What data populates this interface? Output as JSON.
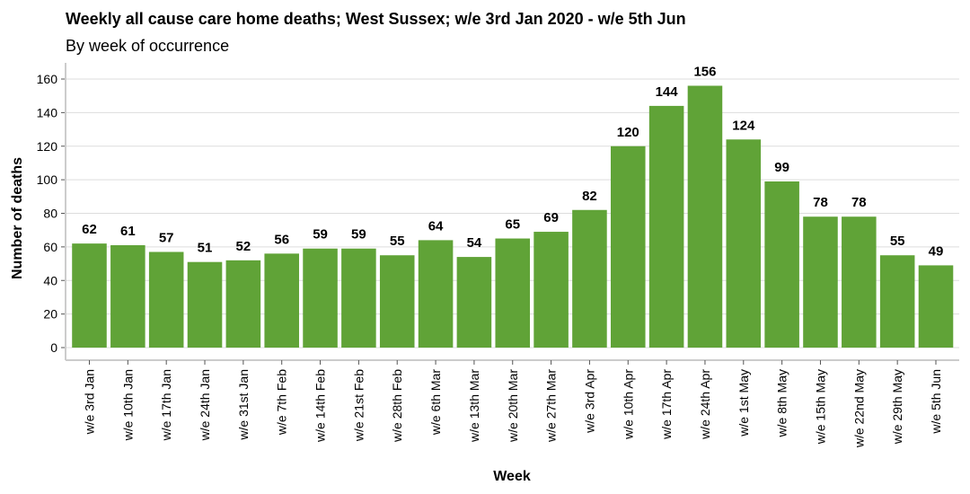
{
  "chart_data": {
    "type": "bar",
    "title": "Weekly all cause care home deaths; West Sussex; w/e 3rd Jan 2020 - w/e 5th Jun",
    "subtitle": "By week of occurrence",
    "xlabel": "Week",
    "ylabel": "Number of deaths",
    "ylim": [
      0,
      160
    ],
    "yticks": [
      0,
      20,
      40,
      60,
      80,
      100,
      120,
      140,
      160
    ],
    "grid": true,
    "bar_color": "#60a337",
    "categories": [
      "w/e 3rd Jan",
      "w/e 10th Jan",
      "w/e 17th Jan",
      "w/e 24th Jan",
      "w/e 31st Jan",
      "w/e 7th Feb",
      "w/e 14th Feb",
      "w/e 21st Feb",
      "w/e 28th Feb",
      "w/e 6th Mar",
      "w/e 13th Mar",
      "w/e 20th Mar",
      "w/e 27th Mar",
      "w/e 3rd Apr",
      "w/e 10th Apr",
      "w/e 17th Apr",
      "w/e 24th Apr",
      "w/e 1st May",
      "w/e 8th May",
      "w/e 15th May",
      "w/e 22nd May",
      "w/e 29th May",
      "w/e 5th Jun"
    ],
    "values": [
      62,
      61,
      57,
      51,
      52,
      56,
      59,
      59,
      55,
      64,
      54,
      65,
      69,
      82,
      120,
      144,
      156,
      124,
      99,
      78,
      78,
      55,
      49
    ]
  }
}
